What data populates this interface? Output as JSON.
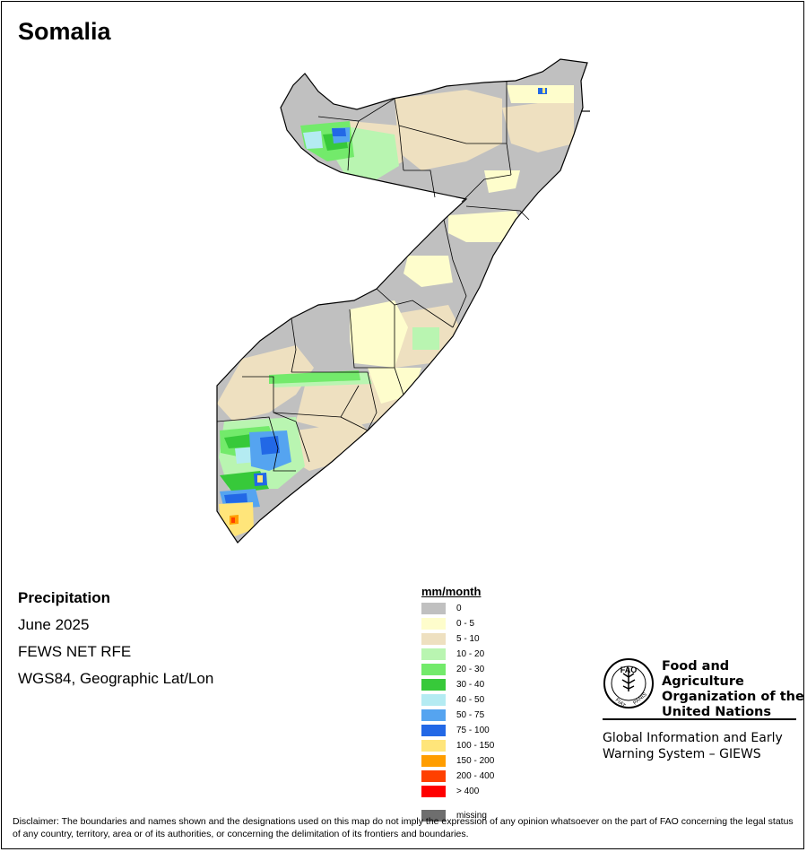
{
  "map": {
    "title": "Somalia",
    "info": {
      "variable": "Precipitation",
      "period": "June 2025",
      "source": "FEWS NET RFE",
      "projection": "WGS84, Geographic Lat/Lon"
    }
  },
  "legend": {
    "title": "mm/month",
    "classes": [
      {
        "label": "0",
        "color": "#c0c0c0"
      },
      {
        "label": "0 - 5",
        "color": "#fefdcc"
      },
      {
        "label": "5 - 10",
        "color": "#eee0c0"
      },
      {
        "label": "10 - 20",
        "color": "#b9f5b1"
      },
      {
        "label": "20 - 30",
        "color": "#73ea6b"
      },
      {
        "label": "30 - 40",
        "color": "#37c93a"
      },
      {
        "label": "40 - 50",
        "color": "#b4ebf2"
      },
      {
        "label": "50 - 75",
        "color": "#55a4f0"
      },
      {
        "label": "75 - 100",
        "color": "#2268e6"
      },
      {
        "label": "100 - 150",
        "color": "#ffe57a"
      },
      {
        "label": "150 - 200",
        "color": "#ff9d00"
      },
      {
        "label": "200 - 400",
        "color": "#ff4000"
      },
      {
        "label": "> 400",
        "color": "#ff0000"
      },
      {
        "label": "missing",
        "color": "#6e6e6e"
      }
    ]
  },
  "branding": {
    "org_name_line1": "Food and Agriculture",
    "org_name_line2": "Organization of the",
    "org_name_line3": "United Nations",
    "logo_text": "FAO",
    "logo_motto_left": "FIAT",
    "logo_motto_right": "PANIS",
    "system_line1": "Global Information and Early",
    "system_line2": "Warning System – GIEWS"
  },
  "disclaimer": "Disclaimer: The boundaries and names shown and the designations used on this map do not imply the expression of any opinion whatsoever on the part of FAO concerning the legal status of any country, territory, area or of its authorities, or concerning the delimitation of its frontiers and boundaries."
}
